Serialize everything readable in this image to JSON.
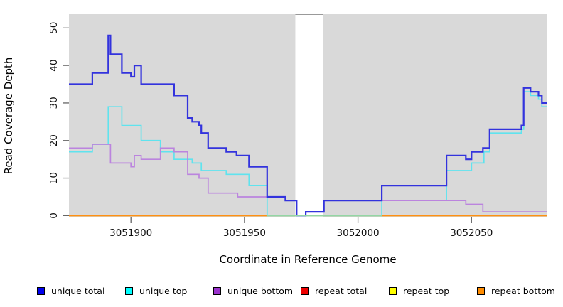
{
  "chart_data": {
    "type": "line",
    "step": true,
    "title": "",
    "xlabel": "Coordinate in Reference Genome",
    "ylabel": "Read Coverage Depth",
    "xlim": [
      3051872.7,
      3052083.1
    ],
    "ylim": [
      -0.5,
      53.85
    ],
    "x_ticks": [
      3051900,
      3051950,
      3052000,
      3052050
    ],
    "y_ticks": [
      0,
      10,
      20,
      30,
      40,
      50
    ],
    "grid": false,
    "panel_bg": "#d9d9d9",
    "tick_color": "#666666",
    "tick_label_color": "#111111",
    "gap_region": {
      "from": 3051972.4,
      "to": 3051984.6,
      "color": "#ffffff",
      "top_border_color": "#999999"
    },
    "baseline_blend": {
      "from": 3051960,
      "to": 3052010.5,
      "value": 0,
      "color": "#93d6a4"
    },
    "series": [
      {
        "name": "repeat total",
        "line_color": "#dd1111",
        "width": 1.5,
        "points": [
          [
            3051872.7,
            0
          ],
          [
            3052083.1,
            0
          ]
        ]
      },
      {
        "name": "repeat top",
        "line_color": "#f5f500",
        "width": 1.5,
        "points": [
          [
            3051872.7,
            0
          ],
          [
            3052083.1,
            0
          ]
        ]
      },
      {
        "name": "repeat bottom",
        "line_color": "#ff9012",
        "width": 1.8,
        "points": [
          [
            3051872.7,
            0
          ],
          [
            3052083.1,
            0
          ]
        ]
      },
      {
        "name": "unique top",
        "line_color": "#5fe3ee",
        "width": 1.7,
        "points": [
          [
            3051872.7,
            17
          ],
          [
            3051883,
            19
          ],
          [
            3051890,
            29
          ],
          [
            3051896,
            24
          ],
          [
            3051904.5,
            20
          ],
          [
            3051913,
            17
          ],
          [
            3051919,
            15
          ],
          [
            3051927,
            14
          ],
          [
            3051931,
            12
          ],
          [
            3051942,
            11
          ],
          [
            3051952,
            8
          ],
          [
            3051960,
            0
          ],
          [
            3052010.5,
            4
          ],
          [
            3052039,
            12
          ],
          [
            3052050,
            14
          ],
          [
            3052055.5,
            17
          ],
          [
            3052058,
            22
          ],
          [
            3052072,
            23
          ],
          [
            3052073,
            33
          ],
          [
            3052076,
            32
          ],
          [
            3052079.5,
            31
          ],
          [
            3052081,
            29
          ],
          [
            3052083.1,
            29
          ]
        ]
      },
      {
        "name": "unique bottom",
        "line_color": "#bb84de",
        "width": 1.7,
        "points": [
          [
            3051872.7,
            18
          ],
          [
            3051883,
            19
          ],
          [
            3051891,
            14
          ],
          [
            3051900,
            13
          ],
          [
            3051901.5,
            16
          ],
          [
            3051904.5,
            15
          ],
          [
            3051913,
            18
          ],
          [
            3051919,
            17
          ],
          [
            3051925,
            11
          ],
          [
            3051930,
            10
          ],
          [
            3051934,
            6
          ],
          [
            3051947,
            5
          ],
          [
            3051968,
            4
          ],
          [
            3051973,
            0
          ],
          [
            3051977,
            1
          ],
          [
            3051985,
            4
          ],
          [
            3052047.5,
            3
          ],
          [
            3052055,
            1
          ],
          [
            3052083.1,
            1
          ]
        ]
      },
      {
        "name": "unique total",
        "line_color": "#3333dd",
        "width": 2.2,
        "points": [
          [
            3051872.7,
            35
          ],
          [
            3051883,
            38
          ],
          [
            3051890,
            48
          ],
          [
            3051891,
            43
          ],
          [
            3051896,
            38
          ],
          [
            3051900,
            37
          ],
          [
            3051901.5,
            40
          ],
          [
            3051904.5,
            35
          ],
          [
            3051919,
            32
          ],
          [
            3051925,
            26
          ],
          [
            3051927,
            25
          ],
          [
            3051930,
            24
          ],
          [
            3051931,
            22
          ],
          [
            3051934,
            18
          ],
          [
            3051942,
            17
          ],
          [
            3051946.5,
            16
          ],
          [
            3051952,
            13
          ],
          [
            3051960,
            5
          ],
          [
            3051968,
            4
          ],
          [
            3051973,
            0
          ],
          [
            3051977,
            1
          ],
          [
            3051985,
            4
          ],
          [
            3052010.5,
            8
          ],
          [
            3052039,
            16
          ],
          [
            3052047.5,
            15
          ],
          [
            3052050,
            17
          ],
          [
            3052055,
            18
          ],
          [
            3052058,
            23
          ],
          [
            3052072,
            24
          ],
          [
            3052073,
            34
          ],
          [
            3052076,
            33
          ],
          [
            3052079.5,
            32
          ],
          [
            3052081,
            30
          ],
          [
            3052083.1,
            30
          ]
        ]
      }
    ],
    "legend": [
      {
        "label": "unique total",
        "color": "#0000ee"
      },
      {
        "label": "unique top",
        "color": "#00ffff"
      },
      {
        "label": "unique bottom",
        "color": "#9a32cd"
      },
      {
        "label": "repeat total",
        "color": "#ee0000"
      },
      {
        "label": "repeat top",
        "color": "#ffff00"
      },
      {
        "label": "repeat bottom",
        "color": "#ff8c00"
      }
    ],
    "legend_position": "bottom"
  }
}
